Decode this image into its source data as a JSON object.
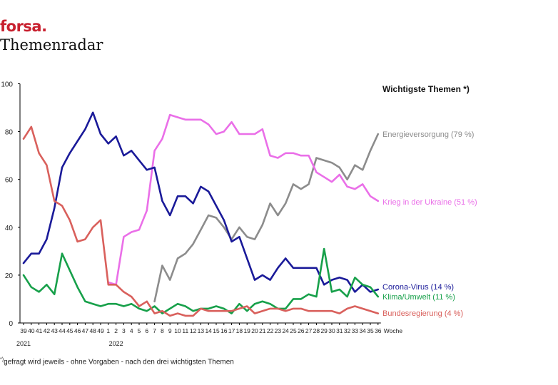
{
  "header": {
    "brand": "forsa.",
    "title": "Themenradar"
  },
  "footnote": {
    "mark": "*)",
    "text": "gefragt wird jeweils - ohne Vorgaben - nach den drei wichtigsten Themen"
  },
  "chart_data": {
    "type": "line",
    "legend_title": "Wichtigste Themen *)",
    "xlabel": "Woche",
    "ylim": [
      0,
      100
    ],
    "yticks": [
      0,
      20,
      40,
      60,
      80,
      100
    ],
    "grid": false,
    "x": [
      "39",
      "40",
      "41",
      "42",
      "43",
      "44",
      "45",
      "46",
      "47",
      "48",
      "49",
      "1",
      "2",
      "3",
      "4",
      "5",
      "6",
      "7",
      "8",
      "9",
      "10",
      "11",
      "12",
      "13",
      "14",
      "15",
      "16",
      "17",
      "18",
      "19",
      "20",
      "21",
      "22",
      "23",
      "24",
      "25",
      "26",
      "27",
      "28",
      "29",
      "30",
      "31",
      "32",
      "33",
      "34",
      "35",
      "36"
    ],
    "year_labels": [
      {
        "label": "2021",
        "at": "39"
      },
      {
        "label": "2022",
        "at": "2"
      }
    ],
    "series": [
      {
        "name": "Energieversorgung",
        "end_label": "Energieversorgung (79 %)",
        "color": "#8c8c8c",
        "start_index": 17,
        "values": [
          null,
          null,
          null,
          null,
          null,
          null,
          null,
          null,
          null,
          null,
          null,
          null,
          null,
          null,
          null,
          null,
          null,
          9,
          24,
          18,
          27,
          29,
          33,
          39,
          45,
          44,
          40,
          35,
          40,
          36,
          35,
          41,
          50,
          45,
          50,
          58,
          56,
          58,
          69,
          68,
          67,
          65,
          60,
          66,
          64,
          72,
          79
        ]
      },
      {
        "name": "Krieg in der Ukraine",
        "end_label": "Krieg in der Ukraine (51 %)",
        "color": "#ea6fe8",
        "start_index": 11,
        "values": [
          null,
          null,
          null,
          null,
          null,
          null,
          null,
          null,
          null,
          null,
          null,
          17,
          16,
          36,
          38,
          39,
          47,
          72,
          77,
          87,
          86,
          85,
          85,
          85,
          83,
          79,
          80,
          84,
          79,
          79,
          79,
          81,
          70,
          69,
          71,
          71,
          70,
          70,
          63,
          61,
          59,
          62,
          57,
          56,
          58,
          53,
          51
        ]
      },
      {
        "name": "Corona-Virus",
        "end_label": "Corona-Virus (14 %)",
        "color": "#1a1a99",
        "start_index": 0,
        "values": [
          25,
          29,
          29,
          35,
          48,
          65,
          71,
          76,
          81,
          88,
          79,
          75,
          78,
          70,
          72,
          68,
          64,
          65,
          51,
          45,
          53,
          53,
          50,
          57,
          55,
          49,
          43,
          34,
          36,
          27,
          18,
          20,
          18,
          23,
          27,
          23,
          23,
          23,
          23,
          16,
          18,
          19,
          18,
          13,
          16,
          13,
          14
        ]
      },
      {
        "name": "Klima/Umwelt",
        "end_label": "Klima/Umwelt (11 %)",
        "color": "#17a04a",
        "start_index": 0,
        "values": [
          20,
          15,
          13,
          16,
          12,
          29,
          22,
          15,
          9,
          8,
          7,
          8,
          8,
          7,
          8,
          6,
          5,
          7,
          4,
          6,
          8,
          7,
          5,
          6,
          6,
          7,
          6,
          4,
          8,
          5,
          8,
          9,
          8,
          6,
          6,
          10,
          10,
          12,
          11,
          31,
          13,
          14,
          11,
          19,
          16,
          15,
          11
        ]
      },
      {
        "name": "Bundesregierung",
        "end_label": "Bundesregierung (4 %)",
        "color": "#d9605c",
        "start_index": 0,
        "values": [
          77,
          82,
          71,
          66,
          51,
          49,
          43,
          34,
          35,
          40,
          43,
          16,
          16,
          13,
          11,
          7,
          9,
          4,
          5,
          3,
          4,
          3,
          3,
          6,
          5,
          5,
          5,
          5,
          6,
          7,
          4,
          5,
          6,
          6,
          5,
          6,
          6,
          5,
          5,
          5,
          5,
          4,
          6,
          7,
          6,
          5,
          4
        ]
      }
    ]
  }
}
